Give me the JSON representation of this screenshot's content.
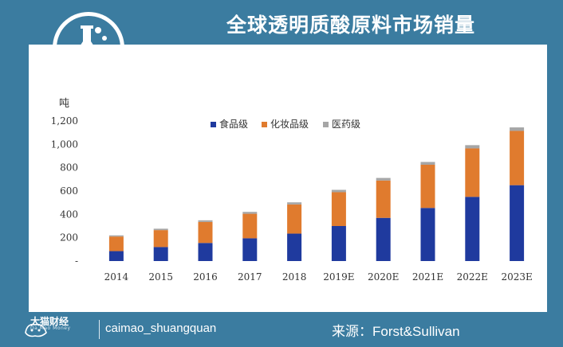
{
  "header": {
    "title": "全球透明质酸原料市场销量"
  },
  "footer": {
    "brand_cn": "大猫财经",
    "brand_en": "Da Mao Money",
    "handle": "caimao_shuangquan",
    "source": "来源：Forst&Sullivan"
  },
  "chart_data": {
    "type": "bar",
    "stacked": true,
    "ylabel": "吨",
    "ylim": [
      0,
      1200
    ],
    "yticks": [
      0,
      200,
      400,
      600,
      800,
      1000,
      1200
    ],
    "ytick_labels": [
      "-",
      "200",
      "400",
      "600",
      "800",
      "1,000",
      "1,200"
    ],
    "categories": [
      "2014",
      "2015",
      "2016",
      "2017",
      "2018",
      "2019E",
      "2020E",
      "2021E",
      "2022E",
      "2023E"
    ],
    "legend_position": "top-center",
    "series": [
      {
        "name": "食品级",
        "color": "#1f3a9e",
        "values": [
          85,
          120,
          155,
          195,
          235,
          300,
          370,
          455,
          550,
          650
        ]
      },
      {
        "name": "化妆品级",
        "color": "#e07b2e",
        "values": [
          125,
          145,
          180,
          210,
          250,
          290,
          320,
          370,
          415,
          465
        ]
      },
      {
        "name": "医药级",
        "color": "#a6a6a6",
        "values": [
          10,
          12,
          14,
          16,
          18,
          20,
          22,
          24,
          28,
          30
        ]
      }
    ]
  }
}
